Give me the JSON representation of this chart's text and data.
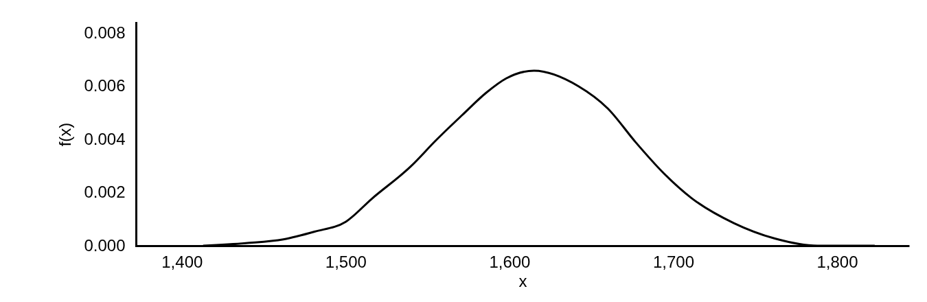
{
  "chart_data": {
    "type": "line",
    "xlabel": "x",
    "ylabel": "f(x)",
    "x": [
      1413,
      1439,
      1462,
      1481,
      1500,
      1516,
      1540,
      1555,
      1571,
      1586,
      1598,
      1615,
      1642,
      1660,
      1677,
      1694,
      1711,
      1737,
      1762,
      1788,
      1823
    ],
    "series": [
      {
        "color": "#000000",
        "values": [
          0.0,
          0.0001,
          0.00024,
          0.00053,
          0.0009,
          0.00177,
          0.003,
          0.00396,
          0.00491,
          0.00577,
          0.0063,
          0.00659,
          0.00601,
          0.00517,
          0.0039,
          0.00274,
          0.0018,
          0.00085,
          0.00027,
          0.0,
          0.0
        ]
      }
    ],
    "xlim": [
      1372,
      1844
    ],
    "ylim": [
      0,
      0.0084
    ],
    "xticks": [
      {
        "value": 1400,
        "label": "1,400"
      },
      {
        "value": 1500,
        "label": "1,500"
      },
      {
        "value": 1600,
        "label": "1,600"
      },
      {
        "value": 1700,
        "label": "1,700"
      },
      {
        "value": 1800,
        "label": "1,800"
      }
    ],
    "yticks": [
      {
        "value": 0,
        "label": "0.000"
      },
      {
        "value": 0.002,
        "label": "0.002"
      },
      {
        "value": 0.004,
        "label": "0.004"
      },
      {
        "value": 0.006,
        "label": "0.006"
      },
      {
        "value": 0.008,
        "label": "0.008"
      }
    ],
    "grid": false,
    "marker": "none",
    "line_style": "solid"
  }
}
